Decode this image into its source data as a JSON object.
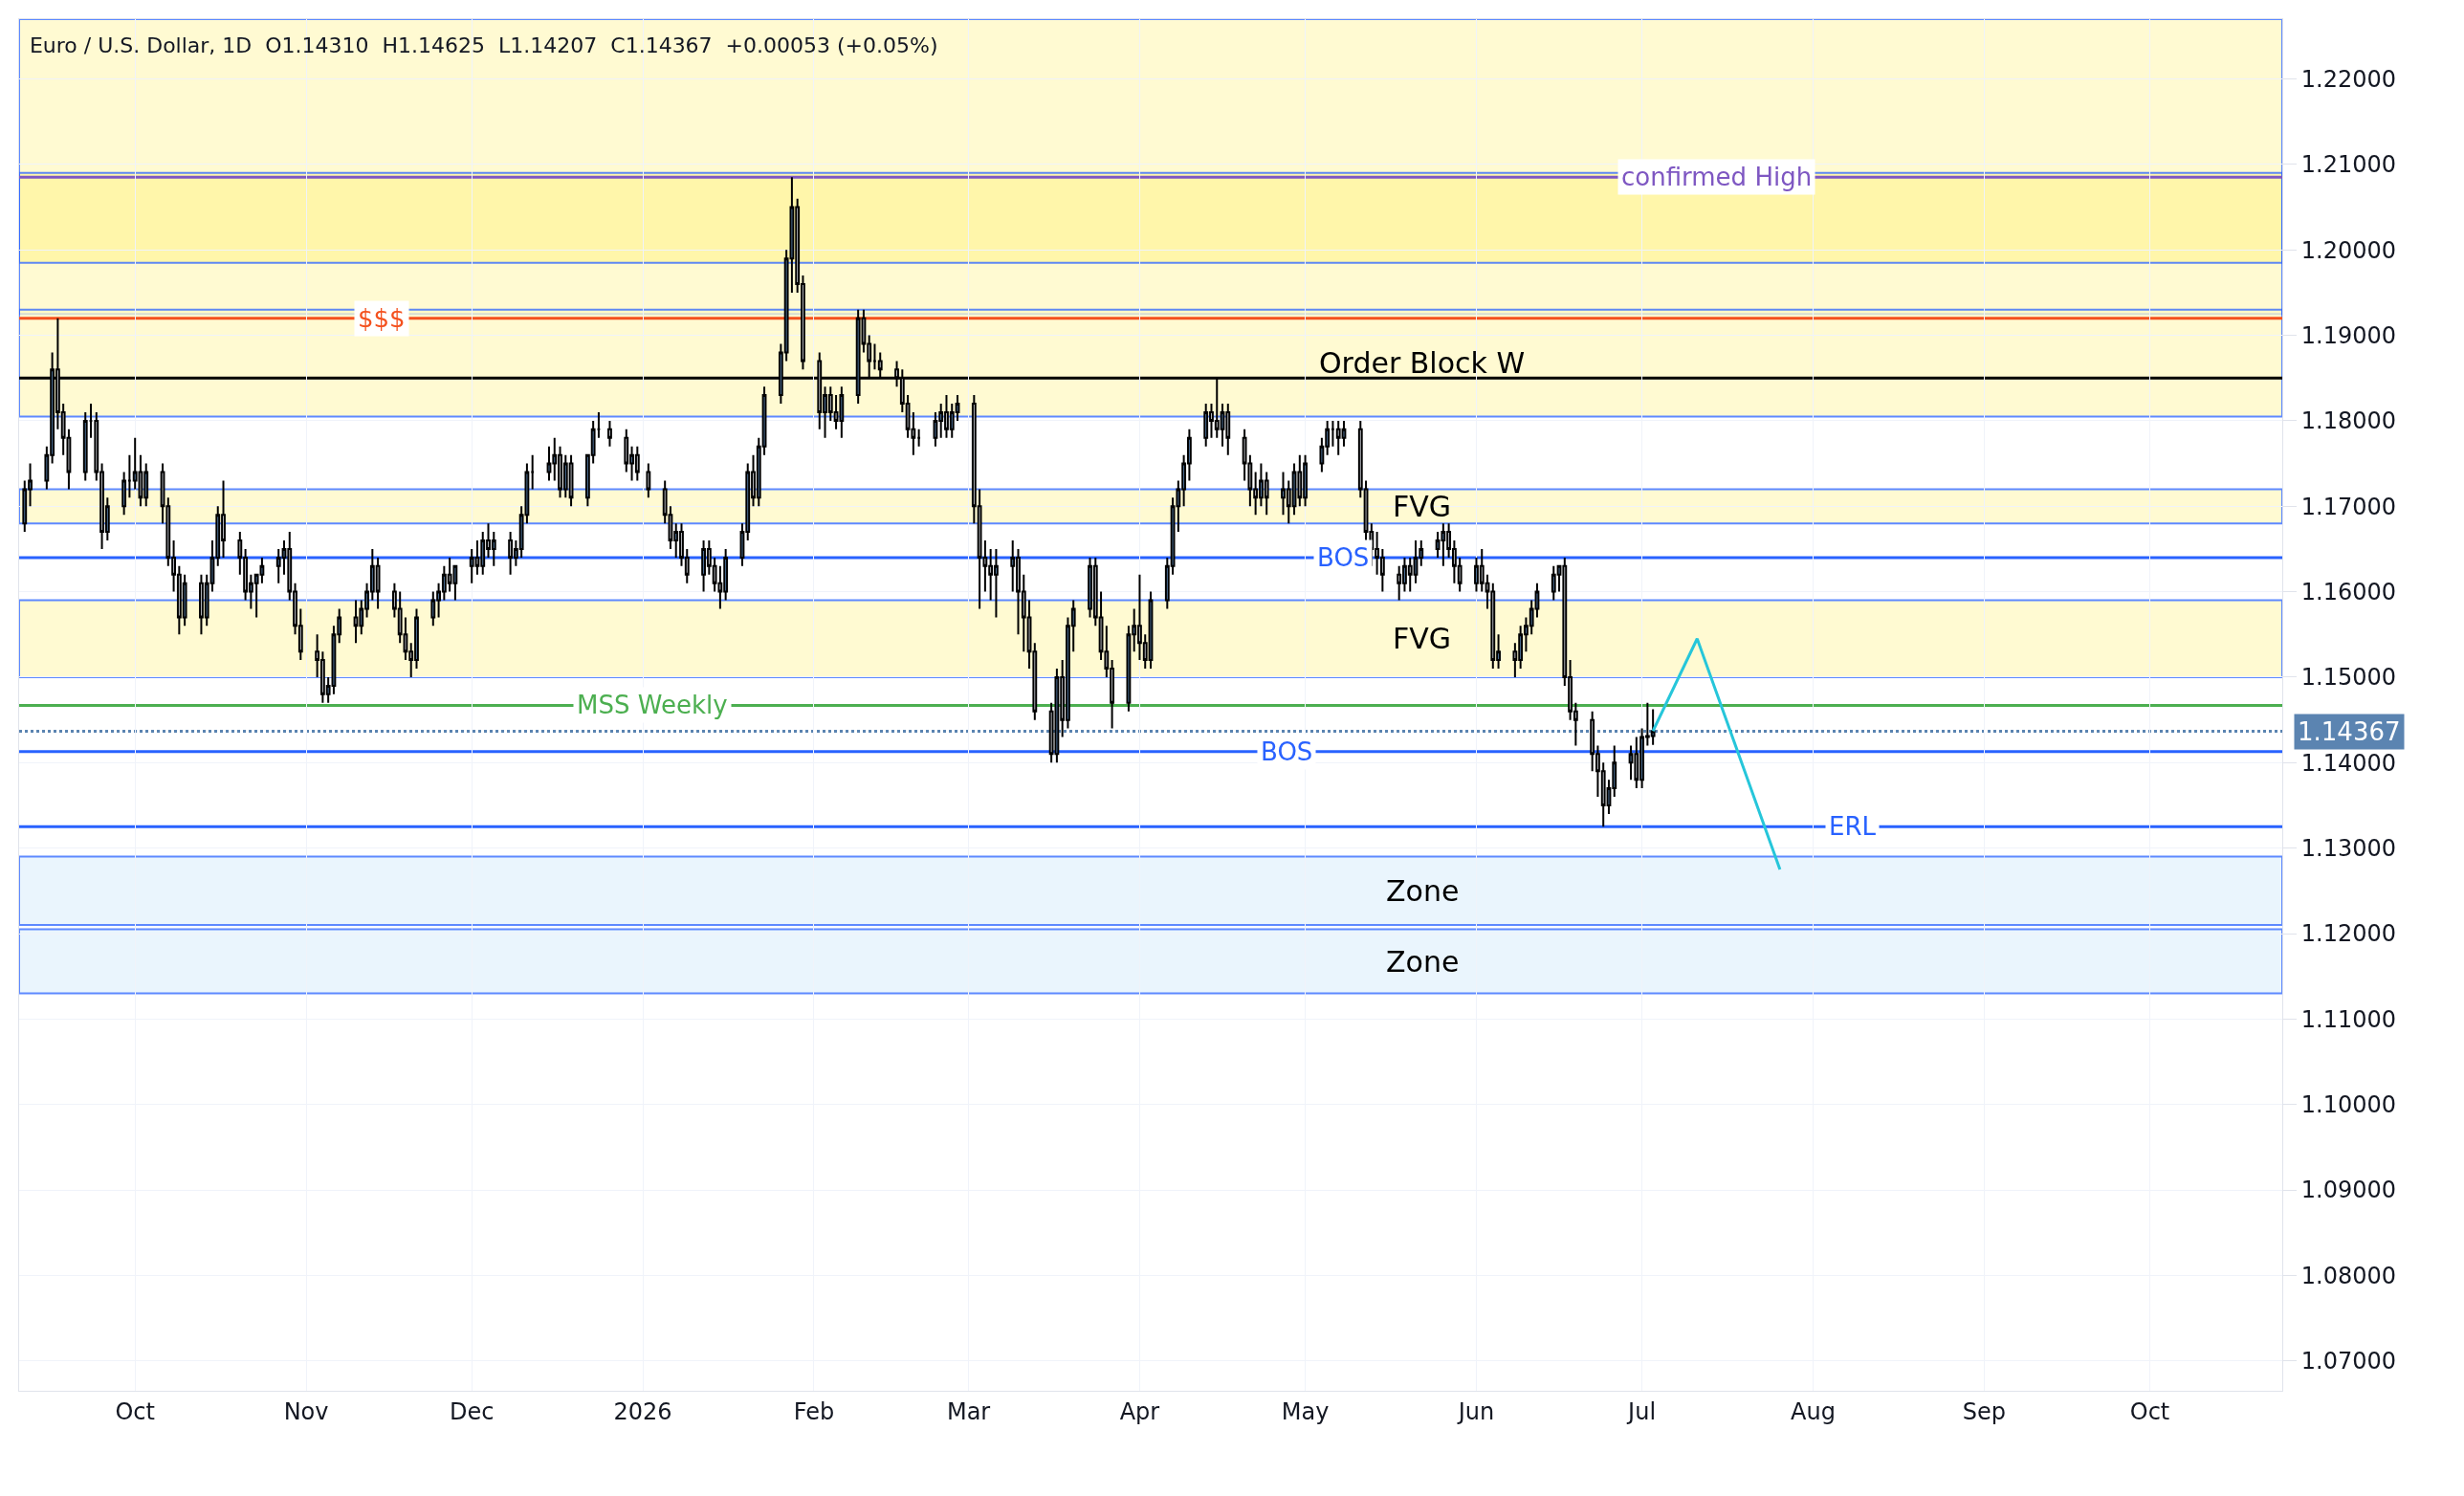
{
  "chart_data": {
    "type": "candlestick",
    "title": "Euro / U.S. Dollar, 1D  O1.14310  H1.14625  L1.14207  C1.14367  +0.00053 (+0.05%)",
    "x": [
      "2025-09-11",
      "2025-09-12",
      "2025-09-15",
      "2025-09-16",
      "2025-09-17",
      "2025-09-18",
      "2025-09-19",
      "2025-09-22",
      "2025-09-23",
      "2025-09-24",
      "2025-09-25",
      "2025-09-26",
      "2025-09-29",
      "2025-09-30",
      "2025-10-01",
      "2025-10-02",
      "2025-10-03",
      "2025-10-06",
      "2025-10-07",
      "2025-10-08",
      "2025-10-09",
      "2025-10-10",
      "2025-10-13",
      "2025-10-14",
      "2025-10-15",
      "2025-10-16",
      "2025-10-17",
      "2025-10-20",
      "2025-10-21",
      "2025-10-22",
      "2025-10-23",
      "2025-10-24",
      "2025-10-27",
      "2025-10-28",
      "2025-10-29",
      "2025-10-30",
      "2025-10-31",
      "2025-11-03",
      "2025-11-04",
      "2025-11-05",
      "2025-11-06",
      "2025-11-07",
      "2025-11-10",
      "2025-11-11",
      "2025-11-12",
      "2025-11-13",
      "2025-11-14",
      "2025-11-17",
      "2025-11-18",
      "2025-11-19",
      "2025-11-20",
      "2025-11-21",
      "2025-11-24",
      "2025-11-25",
      "2025-11-26",
      "2025-11-27",
      "2025-11-28",
      "2025-12-01",
      "2025-12-02",
      "2025-12-03",
      "2025-12-04",
      "2025-12-05",
      "2025-12-08",
      "2025-12-09",
      "2025-12-10",
      "2025-12-11",
      "2025-12-12",
      "2025-12-15",
      "2025-12-16",
      "2025-12-17",
      "2025-12-18",
      "2025-12-19",
      "2025-12-22",
      "2025-12-23",
      "2025-12-24",
      "2025-12-26",
      "2025-12-29",
      "2025-12-30",
      "2025-12-31",
      "2026-01-02",
      "2026-01-05",
      "2026-01-06",
      "2026-01-07",
      "2026-01-08",
      "2026-01-09",
      "2026-01-12",
      "2026-01-13",
      "2026-01-14",
      "2026-01-15",
      "2026-01-16",
      "2026-01-19",
      "2026-01-20",
      "2026-01-21",
      "2026-01-22",
      "2026-01-23",
      "2026-01-26",
      "2026-01-27",
      "2026-01-28",
      "2026-01-29",
      "2026-01-30",
      "2026-02-02",
      "2026-02-03",
      "2026-02-04",
      "2026-02-05",
      "2026-02-06",
      "2026-02-09",
      "2026-02-10",
      "2026-02-11",
      "2026-02-12",
      "2026-02-13",
      "2026-02-16",
      "2026-02-17",
      "2026-02-18",
      "2026-02-19",
      "2026-02-20",
      "2026-02-23",
      "2026-02-24",
      "2026-02-25",
      "2026-02-26",
      "2026-02-27",
      "2026-03-02",
      "2026-03-03",
      "2026-03-04",
      "2026-03-05",
      "2026-03-06",
      "2026-03-09",
      "2026-03-10",
      "2026-03-11",
      "2026-03-12",
      "2026-03-13",
      "2026-03-16",
      "2026-03-17",
      "2026-03-18",
      "2026-03-19",
      "2026-03-20",
      "2026-03-23",
      "2026-03-24",
      "2026-03-25",
      "2026-03-26",
      "2026-03-27",
      "2026-03-30",
      "2026-03-31",
      "2026-04-01",
      "2026-04-02",
      "2026-04-03",
      "2026-04-06",
      "2026-04-07",
      "2026-04-08",
      "2026-04-09",
      "2026-04-10",
      "2026-04-13",
      "2026-04-14",
      "2026-04-15",
      "2026-04-16",
      "2026-04-17",
      "2026-04-20",
      "2026-04-21",
      "2026-04-22",
      "2026-04-23",
      "2026-04-24",
      "2026-04-27",
      "2026-04-28",
      "2026-04-29",
      "2026-04-30",
      "2026-05-01",
      "2026-05-04",
      "2026-05-05",
      "2026-05-06",
      "2026-05-07",
      "2026-05-08",
      "2026-05-11",
      "2026-05-12",
      "2026-05-13",
      "2026-05-14",
      "2026-05-15",
      "2026-05-18",
      "2026-05-19",
      "2026-05-20",
      "2026-05-21",
      "2026-05-22",
      "2026-05-25",
      "2026-05-26",
      "2026-05-27",
      "2026-05-28",
      "2026-05-29",
      "2026-06-01",
      "2026-06-02",
      "2026-06-03",
      "2026-06-04",
      "2026-06-05",
      "2026-06-08",
      "2026-06-09",
      "2026-06-10",
      "2026-06-11",
      "2026-06-12",
      "2026-06-15",
      "2026-06-16",
      "2026-06-17",
      "2026-06-18",
      "2026-06-19",
      "2026-06-22",
      "2026-06-23",
      "2026-06-24",
      "2026-06-25",
      "2026-06-26",
      "2026-06-29",
      "2026-06-30",
      "2026-07-01",
      "2026-07-02",
      "2026-07-03"
    ],
    "ohlc": [
      [
        1.168,
        1.173,
        1.167,
        1.172
      ],
      [
        1.172,
        1.175,
        1.17,
        1.173
      ],
      [
        1.173,
        1.177,
        1.172,
        1.176
      ],
      [
        1.176,
        1.188,
        1.175,
        1.186
      ],
      [
        1.186,
        1.192,
        1.179,
        1.181
      ],
      [
        1.181,
        1.182,
        1.176,
        1.178
      ],
      [
        1.178,
        1.179,
        1.172,
        1.174
      ],
      [
        1.174,
        1.181,
        1.173,
        1.18
      ],
      [
        1.18,
        1.182,
        1.178,
        1.18
      ],
      [
        1.18,
        1.181,
        1.173,
        1.174
      ],
      [
        1.174,
        1.175,
        1.165,
        1.167
      ],
      [
        1.167,
        1.171,
        1.166,
        1.17
      ],
      [
        1.17,
        1.174,
        1.169,
        1.173
      ],
      [
        1.173,
        1.176,
        1.171,
        1.173
      ],
      [
        1.173,
        1.178,
        1.172,
        1.174
      ],
      [
        1.174,
        1.176,
        1.17,
        1.171
      ],
      [
        1.171,
        1.175,
        1.17,
        1.174
      ],
      [
        1.174,
        1.175,
        1.168,
        1.17
      ],
      [
        1.17,
        1.171,
        1.163,
        1.164
      ],
      [
        1.164,
        1.166,
        1.16,
        1.162
      ],
      [
        1.162,
        1.163,
        1.155,
        1.157
      ],
      [
        1.157,
        1.162,
        1.156,
        1.161
      ],
      [
        1.161,
        1.162,
        1.155,
        1.157
      ],
      [
        1.157,
        1.162,
        1.156,
        1.161
      ],
      [
        1.161,
        1.166,
        1.16,
        1.164
      ],
      [
        1.164,
        1.17,
        1.163,
        1.169
      ],
      [
        1.169,
        1.173,
        1.164,
        1.166
      ],
      [
        1.166,
        1.167,
        1.162,
        1.164
      ],
      [
        1.164,
        1.165,
        1.159,
        1.16
      ],
      [
        1.16,
        1.162,
        1.158,
        1.161
      ],
      [
        1.161,
        1.162,
        1.157,
        1.162
      ],
      [
        1.162,
        1.164,
        1.161,
        1.163
      ],
      [
        1.163,
        1.165,
        1.161,
        1.164
      ],
      [
        1.164,
        1.166,
        1.162,
        1.165
      ],
      [
        1.165,
        1.167,
        1.159,
        1.16
      ],
      [
        1.16,
        1.161,
        1.155,
        1.156
      ],
      [
        1.156,
        1.158,
        1.152,
        1.153
      ],
      [
        1.153,
        1.155,
        1.15,
        1.152
      ],
      [
        1.152,
        1.153,
        1.147,
        1.148
      ],
      [
        1.148,
        1.15,
        1.147,
        1.149
      ],
      [
        1.149,
        1.156,
        1.148,
        1.155
      ],
      [
        1.155,
        1.158,
        1.154,
        1.157
      ],
      [
        1.157,
        1.159,
        1.154,
        1.156
      ],
      [
        1.156,
        1.159,
        1.155,
        1.158
      ],
      [
        1.158,
        1.161,
        1.157,
        1.16
      ],
      [
        1.16,
        1.165,
        1.159,
        1.163
      ],
      [
        1.163,
        1.164,
        1.158,
        1.16
      ],
      [
        1.16,
        1.161,
        1.157,
        1.158
      ],
      [
        1.158,
        1.16,
        1.154,
        1.155
      ],
      [
        1.155,
        1.157,
        1.152,
        1.153
      ],
      [
        1.153,
        1.154,
        1.15,
        1.152
      ],
      [
        1.152,
        1.158,
        1.151,
        1.157
      ],
      [
        1.157,
        1.16,
        1.156,
        1.159
      ],
      [
        1.159,
        1.161,
        1.157,
        1.16
      ],
      [
        1.16,
        1.163,
        1.159,
        1.162
      ],
      [
        1.162,
        1.164,
        1.16,
        1.161
      ],
      [
        1.161,
        1.163,
        1.159,
        1.163
      ],
      [
        1.163,
        1.165,
        1.161,
        1.164
      ],
      [
        1.164,
        1.166,
        1.162,
        1.163
      ],
      [
        1.163,
        1.167,
        1.162,
        1.166
      ],
      [
        1.166,
        1.168,
        1.164,
        1.165
      ],
      [
        1.165,
        1.167,
        1.163,
        1.166
      ],
      [
        1.166,
        1.167,
        1.162,
        1.164
      ],
      [
        1.164,
        1.166,
        1.163,
        1.165
      ],
      [
        1.165,
        1.17,
        1.164,
        1.169
      ],
      [
        1.169,
        1.175,
        1.168,
        1.174
      ],
      [
        1.174,
        1.176,
        1.172,
        1.174
      ],
      [
        1.174,
        1.177,
        1.173,
        1.175
      ],
      [
        1.175,
        1.178,
        1.173,
        1.176
      ],
      [
        1.176,
        1.177,
        1.171,
        1.172
      ],
      [
        1.172,
        1.176,
        1.171,
        1.175
      ],
      [
        1.175,
        1.176,
        1.17,
        1.171
      ],
      [
        1.171,
        1.176,
        1.17,
        1.176
      ],
      [
        1.176,
        1.18,
        1.175,
        1.179
      ],
      [
        1.179,
        1.181,
        1.178,
        1.179
      ],
      [
        1.179,
        1.18,
        1.177,
        1.178
      ],
      [
        1.178,
        1.179,
        1.174,
        1.175
      ],
      [
        1.175,
        1.177,
        1.173,
        1.176
      ],
      [
        1.176,
        1.177,
        1.173,
        1.174
      ],
      [
        1.174,
        1.175,
        1.171,
        1.172
      ],
      [
        1.172,
        1.173,
        1.168,
        1.169
      ],
      [
        1.169,
        1.17,
        1.165,
        1.166
      ],
      [
        1.166,
        1.168,
        1.164,
        1.167
      ],
      [
        1.167,
        1.168,
        1.163,
        1.164
      ],
      [
        1.164,
        1.165,
        1.161,
        1.162
      ],
      [
        1.162,
        1.166,
        1.16,
        1.165
      ],
      [
        1.165,
        1.166,
        1.162,
        1.163
      ],
      [
        1.163,
        1.164,
        1.16,
        1.161
      ],
      [
        1.161,
        1.163,
        1.158,
        1.16
      ],
      [
        1.16,
        1.165,
        1.159,
        1.164
      ],
      [
        1.164,
        1.168,
        1.163,
        1.167
      ],
      [
        1.167,
        1.175,
        1.166,
        1.174
      ],
      [
        1.174,
        1.176,
        1.17,
        1.171
      ],
      [
        1.171,
        1.178,
        1.17,
        1.177
      ],
      [
        1.177,
        1.184,
        1.176,
        1.183
      ],
      [
        1.183,
        1.189,
        1.182,
        1.188
      ],
      [
        1.188,
        1.2,
        1.187,
        1.199
      ],
      [
        1.199,
        1.2085,
        1.195,
        1.205
      ],
      [
        1.205,
        1.206,
        1.195,
        1.196
      ],
      [
        1.196,
        1.197,
        1.186,
        1.187
      ],
      [
        1.187,
        1.188,
        1.179,
        1.181
      ],
      [
        1.181,
        1.184,
        1.178,
        1.183
      ],
      [
        1.183,
        1.184,
        1.18,
        1.181
      ],
      [
        1.181,
        1.183,
        1.179,
        1.18
      ],
      [
        1.18,
        1.184,
        1.178,
        1.183
      ],
      [
        1.183,
        1.193,
        1.182,
        1.192
      ],
      [
        1.192,
        1.193,
        1.188,
        1.189
      ],
      [
        1.189,
        1.19,
        1.185,
        1.187
      ],
      [
        1.187,
        1.189,
        1.186,
        1.187
      ],
      [
        1.187,
        1.188,
        1.185,
        1.186
      ],
      [
        1.186,
        1.187,
        1.184,
        1.185
      ],
      [
        1.185,
        1.186,
        1.181,
        1.182
      ],
      [
        1.182,
        1.183,
        1.178,
        1.179
      ],
      [
        1.179,
        1.181,
        1.176,
        1.178
      ],
      [
        1.178,
        1.179,
        1.177,
        1.178
      ],
      [
        1.178,
        1.181,
        1.177,
        1.18
      ],
      [
        1.18,
        1.182,
        1.178,
        1.181
      ],
      [
        1.181,
        1.183,
        1.178,
        1.179
      ],
      [
        1.179,
        1.182,
        1.178,
        1.181
      ],
      [
        1.181,
        1.183,
        1.18,
        1.182
      ],
      [
        1.182,
        1.183,
        1.168,
        1.17
      ],
      [
        1.17,
        1.172,
        1.158,
        1.164
      ],
      [
        1.164,
        1.166,
        1.16,
        1.163
      ],
      [
        1.163,
        1.165,
        1.159,
        1.162
      ],
      [
        1.162,
        1.165,
        1.157,
        1.163
      ],
      [
        1.163,
        1.166,
        1.16,
        1.164
      ],
      [
        1.164,
        1.165,
        1.155,
        1.16
      ],
      [
        1.16,
        1.162,
        1.153,
        1.157
      ],
      [
        1.157,
        1.159,
        1.151,
        1.153
      ],
      [
        1.153,
        1.154,
        1.145,
        1.146
      ],
      [
        1.146,
        1.147,
        1.14,
        1.141
      ],
      [
        1.141,
        1.151,
        1.14,
        1.15
      ],
      [
        1.15,
        1.152,
        1.143,
        1.145
      ],
      [
        1.145,
        1.157,
        1.144,
        1.156
      ],
      [
        1.156,
        1.159,
        1.153,
        1.158
      ],
      [
        1.158,
        1.164,
        1.157,
        1.163
      ],
      [
        1.163,
        1.164,
        1.156,
        1.157
      ],
      [
        1.157,
        1.16,
        1.152,
        1.153
      ],
      [
        1.153,
        1.156,
        1.15,
        1.151
      ],
      [
        1.151,
        1.152,
        1.144,
        1.147
      ],
      [
        1.147,
        1.156,
        1.146,
        1.155
      ],
      [
        1.155,
        1.158,
        1.153,
        1.156
      ],
      [
        1.156,
        1.162,
        1.152,
        1.154
      ],
      [
        1.154,
        1.155,
        1.151,
        1.152
      ],
      [
        1.152,
        1.16,
        1.151,
        1.159
      ],
      [
        1.159,
        1.164,
        1.158,
        1.163
      ],
      [
        1.163,
        1.171,
        1.162,
        1.17
      ],
      [
        1.17,
        1.173,
        1.167,
        1.172
      ],
      [
        1.172,
        1.176,
        1.17,
        1.175
      ],
      [
        1.175,
        1.179,
        1.173,
        1.178
      ],
      [
        1.178,
        1.182,
        1.177,
        1.181
      ],
      [
        1.181,
        1.182,
        1.178,
        1.18
      ],
      [
        1.18,
        1.185,
        1.178,
        1.179
      ],
      [
        1.179,
        1.182,
        1.177,
        1.181
      ],
      [
        1.181,
        1.182,
        1.176,
        1.178
      ],
      [
        1.178,
        1.179,
        1.173,
        1.175
      ],
      [
        1.175,
        1.176,
        1.17,
        1.172
      ],
      [
        1.172,
        1.174,
        1.169,
        1.171
      ],
      [
        1.171,
        1.175,
        1.17,
        1.173
      ],
      [
        1.173,
        1.174,
        1.169,
        1.171
      ],
      [
        1.171,
        1.174,
        1.169,
        1.172
      ],
      [
        1.172,
        1.173,
        1.168,
        1.17
      ],
      [
        1.17,
        1.175,
        1.169,
        1.174
      ],
      [
        1.174,
        1.176,
        1.17,
        1.171
      ],
      [
        1.171,
        1.176,
        1.17,
        1.175
      ],
      [
        1.175,
        1.178,
        1.174,
        1.177
      ],
      [
        1.177,
        1.18,
        1.176,
        1.179
      ],
      [
        1.179,
        1.18,
        1.177,
        1.179
      ],
      [
        1.179,
        1.18,
        1.176,
        1.178
      ],
      [
        1.178,
        1.18,
        1.177,
        1.179
      ],
      [
        1.179,
        1.18,
        1.171,
        1.172
      ],
      [
        1.172,
        1.173,
        1.166,
        1.167
      ],
      [
        1.167,
        1.168,
        1.163,
        1.165
      ],
      [
        1.165,
        1.167,
        1.162,
        1.164
      ],
      [
        1.164,
        1.165,
        1.16,
        1.162
      ],
      [
        1.162,
        1.163,
        1.159,
        1.161
      ],
      [
        1.161,
        1.164,
        1.16,
        1.163
      ],
      [
        1.163,
        1.164,
        1.16,
        1.162
      ],
      [
        1.162,
        1.166,
        1.161,
        1.164
      ],
      [
        1.164,
        1.166,
        1.163,
        1.165
      ],
      [
        1.165,
        1.167,
        1.164,
        1.166
      ],
      [
        1.166,
        1.168,
        1.163,
        1.167
      ],
      [
        1.167,
        1.168,
        1.164,
        1.165
      ],
      [
        1.165,
        1.166,
        1.161,
        1.163
      ],
      [
        1.163,
        1.164,
        1.16,
        1.161
      ],
      [
        1.161,
        1.164,
        1.16,
        1.163
      ],
      [
        1.163,
        1.165,
        1.16,
        1.161
      ],
      [
        1.161,
        1.162,
        1.158,
        1.16
      ],
      [
        1.16,
        1.161,
        1.151,
        1.152
      ],
      [
        1.152,
        1.155,
        1.151,
        1.153
      ],
      [
        1.153,
        1.154,
        1.15,
        1.152
      ],
      [
        1.152,
        1.156,
        1.151,
        1.155
      ],
      [
        1.155,
        1.157,
        1.153,
        1.156
      ],
      [
        1.156,
        1.159,
        1.155,
        1.158
      ],
      [
        1.158,
        1.161,
        1.157,
        1.16
      ],
      [
        1.16,
        1.163,
        1.159,
        1.162
      ],
      [
        1.162,
        1.163,
        1.16,
        1.163
      ],
      [
        1.163,
        1.164,
        1.149,
        1.15
      ],
      [
        1.15,
        1.152,
        1.145,
        1.146
      ],
      [
        1.146,
        1.147,
        1.142,
        1.145
      ],
      [
        1.145,
        1.146,
        1.139,
        1.141
      ],
      [
        1.141,
        1.142,
        1.136,
        1.139
      ],
      [
        1.139,
        1.14,
        1.1325,
        1.135
      ],
      [
        1.135,
        1.138,
        1.134,
        1.137
      ],
      [
        1.137,
        1.142,
        1.136,
        1.14
      ],
      [
        1.14,
        1.142,
        1.138,
        1.141
      ],
      [
        1.141,
        1.143,
        1.137,
        1.138
      ],
      [
        1.138,
        1.144,
        1.137,
        1.143
      ],
      [
        1.143,
        1.147,
        1.142,
        1.1431
      ],
      [
        1.1431,
        1.14625,
        1.14207,
        1.14367
      ]
    ],
    "series": [
      {
        "type": "line",
        "color": "#26c6da",
        "x": [
          "2026-07-03",
          "2026-07-11",
          "2026-07-26"
        ],
        "values": [
          1.1437,
          1.1545,
          1.1275
        ]
      }
    ],
    "xlim": [
      "2025-09-10",
      "2026-10-25"
    ],
    "xticks": [
      {
        "value": "2025-10-01",
        "label": "Oct"
      },
      {
        "value": "2025-11-01",
        "label": "Nov"
      },
      {
        "value": "2025-12-01",
        "label": "Dec"
      },
      {
        "value": "2026-01-01",
        "label": "2026"
      },
      {
        "value": "2026-02-01",
        "label": "Feb"
      },
      {
        "value": "2026-03-01",
        "label": "Mar"
      },
      {
        "value": "2026-04-01",
        "label": "Apr"
      },
      {
        "value": "2026-05-01",
        "label": "May"
      },
      {
        "value": "2026-06-01",
        "label": "Jun"
      },
      {
        "value": "2026-07-01",
        "label": "Jul"
      },
      {
        "value": "2026-08-01",
        "label": "Aug"
      },
      {
        "value": "2026-09-01",
        "label": "Sep"
      },
      {
        "value": "2026-10-01",
        "label": "Oct"
      }
    ],
    "ylim": [
      1.0665,
      1.227
    ],
    "yticks": [
      {
        "value": 1.07,
        "label": "1.07000"
      },
      {
        "value": 1.08,
        "label": "1.08000"
      },
      {
        "value": 1.09,
        "label": "1.09000"
      },
      {
        "value": 1.1,
        "label": "1.10000"
      },
      {
        "value": 1.11,
        "label": "1.11000"
      },
      {
        "value": 1.12,
        "label": "1.12000"
      },
      {
        "value": 1.13,
        "label": "1.13000"
      },
      {
        "value": 1.14,
        "label": "1.14000"
      },
      {
        "value": 1.15,
        "label": "1.15000"
      },
      {
        "value": 1.16,
        "label": "1.16000"
      },
      {
        "value": 1.17,
        "label": "1.17000"
      },
      {
        "value": 1.18,
        "label": "1.18000"
      },
      {
        "value": 1.19,
        "label": "1.19000"
      },
      {
        "value": 1.2,
        "label": "1.20000"
      },
      {
        "value": 1.21,
        "label": "1.21000"
      },
      {
        "value": 1.22,
        "label": "1.22000"
      }
    ],
    "grid": true,
    "bands": [
      {
        "axis": "y",
        "from": 1.1925,
        "to": 1.227,
        "color": "#fff9c4"
      },
      {
        "axis": "y",
        "from": 1.1985,
        "to": 1.209,
        "color": "#fff59d"
      },
      {
        "axis": "y",
        "from": 1.1805,
        "to": 1.193,
        "color": "#fff9c4",
        "label": "Order Block W"
      },
      {
        "axis": "y",
        "from": 1.168,
        "to": 1.172,
        "color": "#fff9c4",
        "label": "FVG"
      },
      {
        "axis": "y",
        "from": 1.15,
        "to": 1.159,
        "color": "#fff9c4",
        "label": "FVG"
      },
      {
        "axis": "y",
        "from": 1.121,
        "to": 1.129,
        "color": "#e3f2fd",
        "label": "Zone"
      },
      {
        "axis": "y",
        "from": 1.113,
        "to": 1.1205,
        "color": "#e3f2fd",
        "label": "Zone"
      }
    ],
    "ref_lines": [
      {
        "axis": "y",
        "value": 1.2085,
        "label": "confirmed High",
        "color": "#7e57c2"
      },
      {
        "axis": "y",
        "value": 1.192,
        "label": "$$$",
        "color": "#f4511e"
      },
      {
        "axis": "y",
        "value": 1.185,
        "color": "#000000"
      },
      {
        "axis": "y",
        "value": 1.164,
        "label": "BOS",
        "color": "#2962ff"
      },
      {
        "axis": "y",
        "value": 1.1467,
        "label": "MSS Weekly",
        "color": "#4caf50"
      },
      {
        "axis": "y",
        "value": 1.1413,
        "label": "BOS",
        "color": "#2962ff"
      },
      {
        "axis": "y",
        "value": 1.1325,
        "label": "ERL",
        "color": "#2962ff"
      },
      {
        "axis": "y",
        "value": 1.14367,
        "label": "1.14367",
        "color": "#5b84b1",
        "line_style": "dotted"
      }
    ]
  }
}
